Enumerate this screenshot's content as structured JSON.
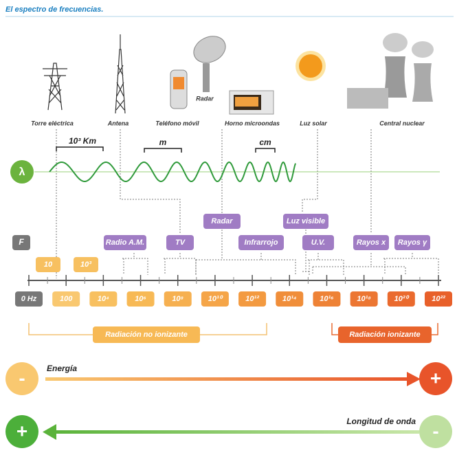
{
  "title": "El espectro de frecuencias.",
  "sources": [
    "Torre eléctrica",
    "Antena",
    "Teléfono móvil",
    "Radar",
    "Horno microondas",
    "Luz solar",
    "Central nuclear"
  ],
  "wavelength": {
    "symbol": "λ",
    "markers": [
      "10³ Km",
      "m",
      "cm"
    ]
  },
  "frequency": {
    "symbol": "F",
    "bands": [
      "Radar",
      "Luz visible",
      "Radio A.M.",
      "TV",
      "Infrarrojo",
      "U.V.",
      "Rayos x",
      "Rayos γ"
    ],
    "low_labels": [
      "10",
      "10³"
    ],
    "axis_labels": [
      "0 Hz",
      "100",
      "10⁴",
      "10⁶",
      "10⁸",
      "10¹⁰",
      "10¹²",
      "10¹⁴",
      "10¹⁶",
      "10¹⁸",
      "10²⁰",
      "10²²"
    ]
  },
  "radiation": {
    "non_ionizing": "Radiación no ionizante",
    "ionizing": "Radiación ionizante"
  },
  "energy": {
    "label": "Energía",
    "low": "-",
    "high": "+"
  },
  "wavelength_arrow": {
    "label": "Longitud de onda",
    "high": "+",
    "low": "-"
  }
}
